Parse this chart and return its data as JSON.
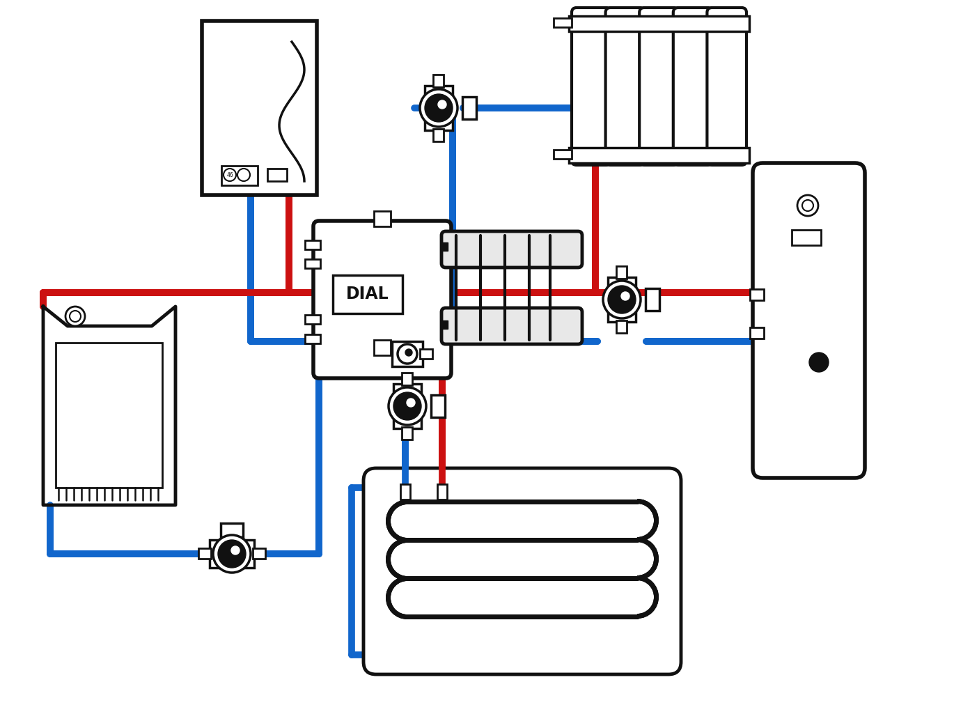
{
  "bg": "#ffffff",
  "red": "#cc1111",
  "blue": "#1166cc",
  "black": "#111111",
  "lw_pipe": 7,
  "lw_comp": 3.5,
  "lw_thin": 2.5
}
